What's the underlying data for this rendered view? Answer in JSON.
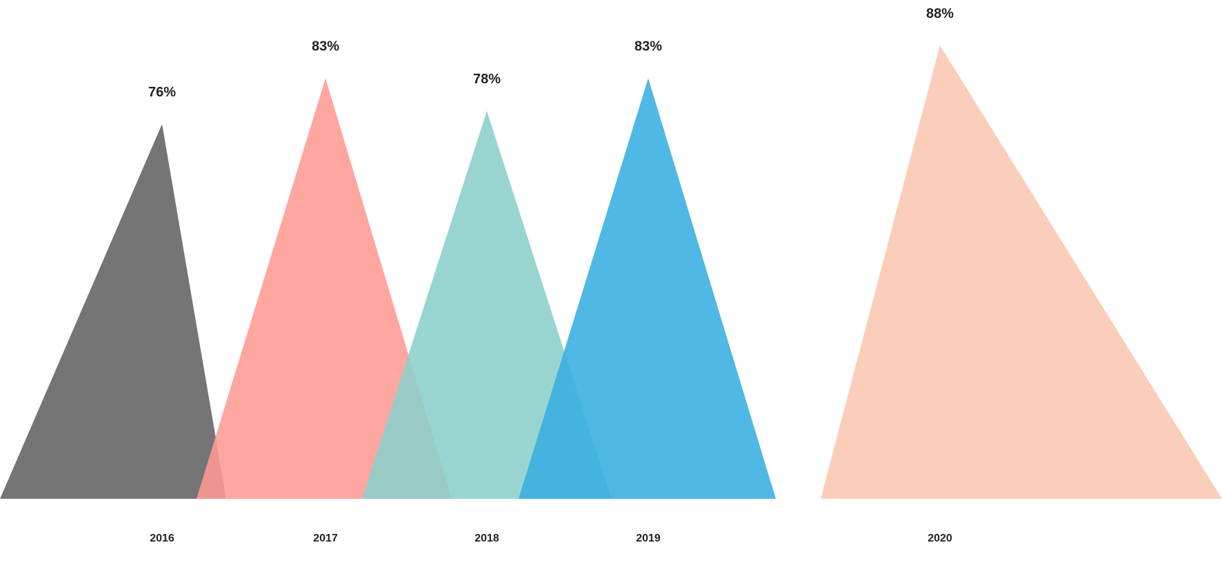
{
  "chart_data": {
    "type": "triangle-bar",
    "categories": [
      "2016",
      "2017",
      "2018",
      "2019",
      "2020"
    ],
    "values": [
      76,
      83,
      78,
      83,
      88
    ],
    "data_labels": [
      "76%",
      "83%",
      "78%",
      "83%",
      "88%"
    ],
    "colors": [
      "#757575",
      "#ff9a94",
      "#8bcfc9",
      "#38aee0",
      "#f9c7b0"
    ],
    "title": "",
    "xlabel": "",
    "ylabel": "",
    "grid": false,
    "legend": "none"
  }
}
